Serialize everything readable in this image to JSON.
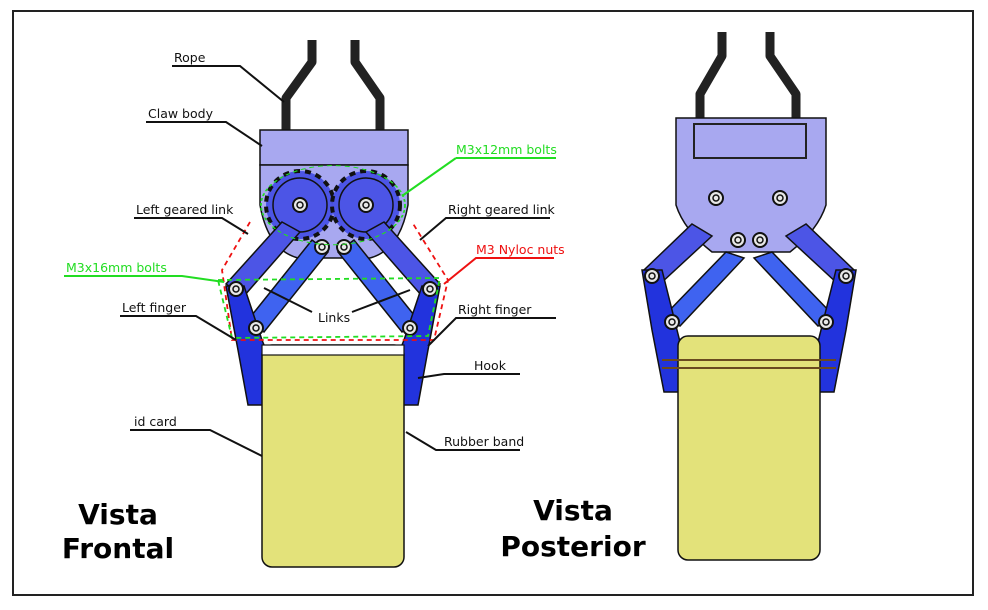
{
  "front": {
    "labels": {
      "rope": "Rope",
      "claw_body": "Claw body",
      "m3x12": "M3x12mm bolts",
      "left_geared_link": "Left geared link",
      "right_geared_link": "Right geared link",
      "m3_nyloc": "M3 Nyloc nuts",
      "m3x16": "M3x16mm bolts",
      "links": "Links",
      "left_finger": "Left finger",
      "right_finger": "Right finger",
      "hook": "Hook",
      "id_card": "id card",
      "rubber_band": "Rubber band"
    },
    "title_line1": "Vista",
    "title_line2": "Frontal"
  },
  "back": {
    "title_line1": "Vista",
    "title_line2": "Posterior"
  },
  "colors": {
    "body": "#a8a8f0",
    "gear": "#4c55e6",
    "finger": "#2233dd",
    "link": "#3f63f0",
    "card": "#e3e27a",
    "green_annotation": "#22dd22",
    "red_annotation": "#ee1111"
  }
}
